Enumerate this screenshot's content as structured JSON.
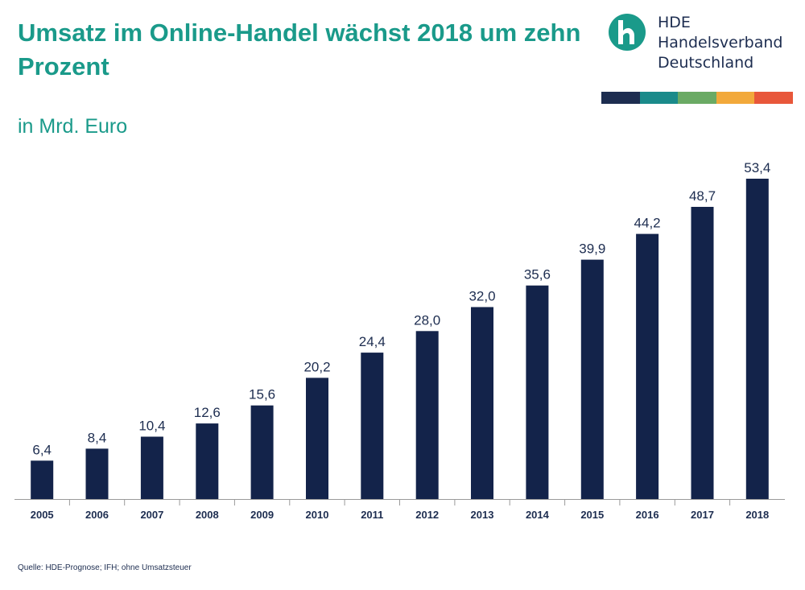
{
  "header": {
    "title": "Umsatz im Online-Handel wächst 2018 um zehn Prozent",
    "subtitle": "in Mrd. Euro"
  },
  "logo": {
    "line1": "HDE",
    "line2": "Handelsverband",
    "line3": "Deutschland",
    "mark_icon": "hde-h-logo-icon",
    "brand_color": "#1a9a8a",
    "text_color": "#1d2d50"
  },
  "color_bar": [
    "#1d2d50",
    "#1a8a8a",
    "#6aaa64",
    "#f2a93b",
    "#e8573a"
  ],
  "footer": {
    "source": "Quelle: HDE-Prognose; IFH; ohne Umsatzsteuer"
  },
  "chart_data": {
    "type": "bar",
    "categories": [
      "2005",
      "2006",
      "2007",
      "2008",
      "2009",
      "2010",
      "2011",
      "2012",
      "2013",
      "2014",
      "2015",
      "2016",
      "2017",
      "2018"
    ],
    "values": [
      6.4,
      8.4,
      10.4,
      12.6,
      15.6,
      20.2,
      24.4,
      28.0,
      32.0,
      35.6,
      39.9,
      44.2,
      48.7,
      53.4
    ],
    "value_labels": [
      "6,4",
      "8,4",
      "10,4",
      "12,6",
      "15,6",
      "20,2",
      "24,4",
      "28,0",
      "32,0",
      "35,6",
      "39,9",
      "44,2",
      "48,7",
      "53,4"
    ],
    "ylim": [
      0,
      53.4
    ],
    "bar_color": "#13234a",
    "grid": false,
    "legend": "none"
  }
}
